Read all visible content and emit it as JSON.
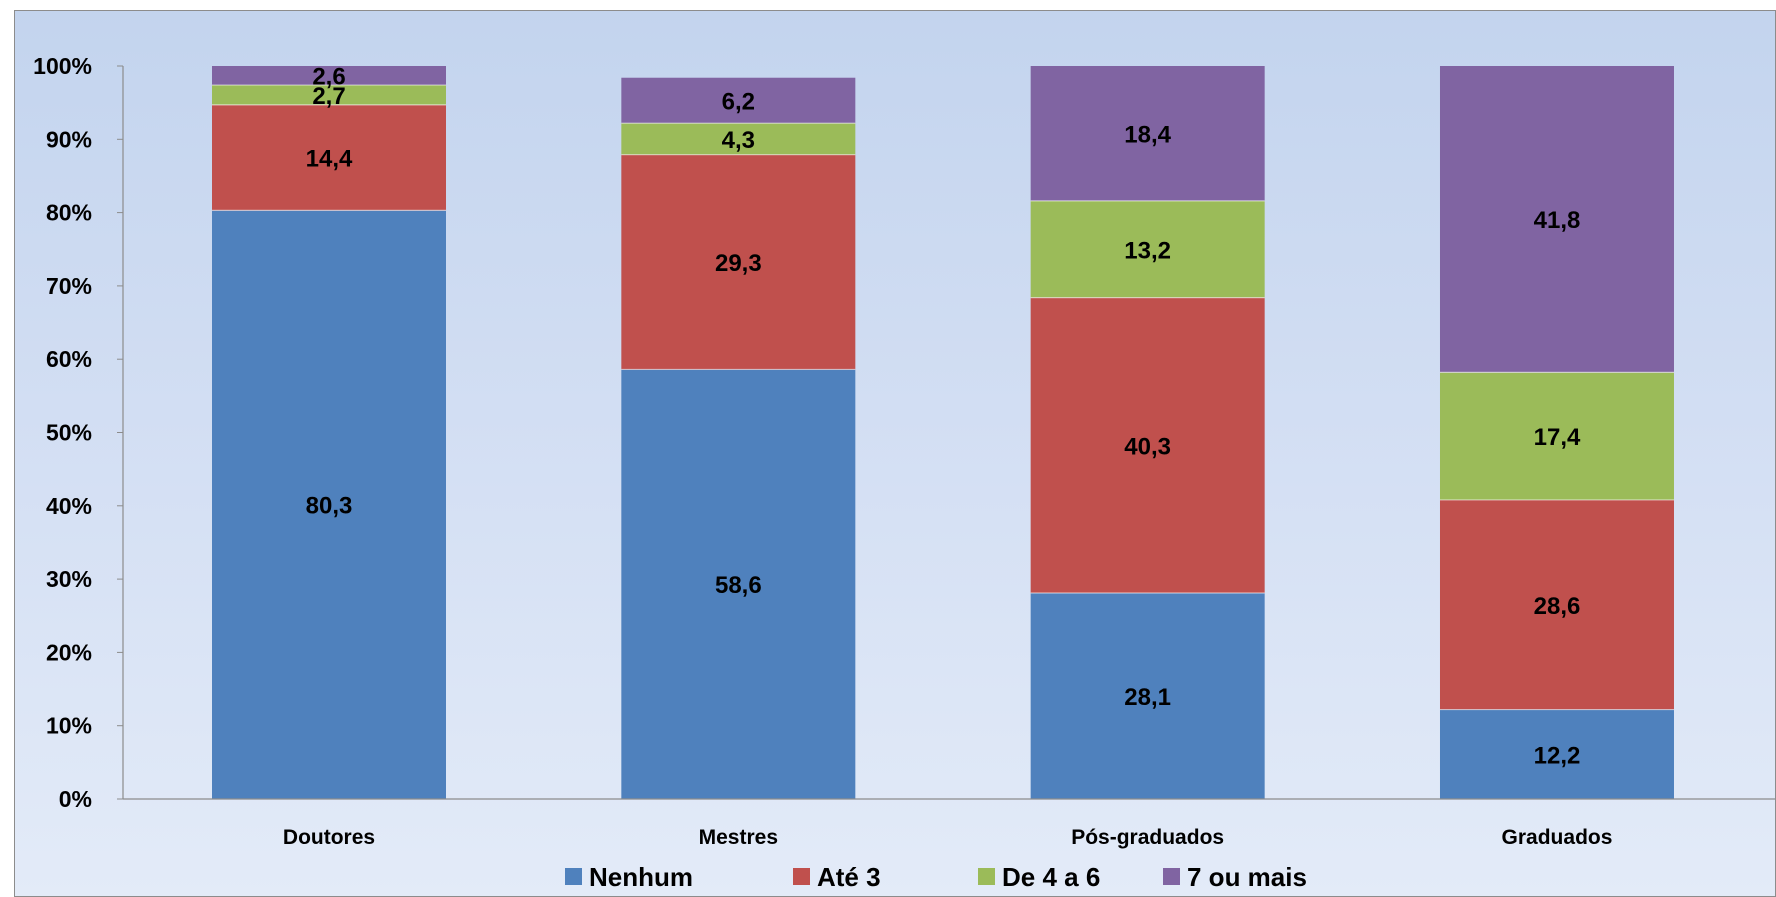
{
  "chart_data": {
    "type": "bar",
    "stacked": true,
    "percent_axis": true,
    "title": "",
    "xlabel": "",
    "ylabel": "",
    "ylim": [
      0,
      100
    ],
    "y_ticks": [
      "0%",
      "10%",
      "20%",
      "30%",
      "40%",
      "50%",
      "60%",
      "70%",
      "80%",
      "90%",
      "100%"
    ],
    "categories": [
      "Doutores",
      "Mestres",
      "Pós-graduados",
      "Graduados"
    ],
    "series": [
      {
        "name": "Nenhum",
        "color": "#4f81bd",
        "values": [
          80.3,
          58.6,
          28.1,
          12.2
        ],
        "labels": [
          "80,3",
          "58,6",
          "28,1",
          "12,2"
        ]
      },
      {
        "name": "Até 3",
        "color": "#c0504d",
        "values": [
          14.4,
          29.3,
          40.3,
          28.6
        ],
        "labels": [
          "14,4",
          "29,3",
          "40,3",
          "28,6"
        ]
      },
      {
        "name": "De 4 a 6",
        "color": "#9bbb59",
        "values": [
          2.7,
          4.3,
          13.2,
          17.4
        ],
        "labels": [
          "2,7",
          "4,3",
          "13,2",
          "17,4"
        ]
      },
      {
        "name": "7 ou mais",
        "color": "#8064a2",
        "values": [
          2.6,
          6.2,
          18.4,
          41.8
        ],
        "labels": [
          "2,6",
          "6,2",
          "18,4",
          "41,8"
        ]
      }
    ],
    "grid": false,
    "legend_position": "bottom"
  }
}
